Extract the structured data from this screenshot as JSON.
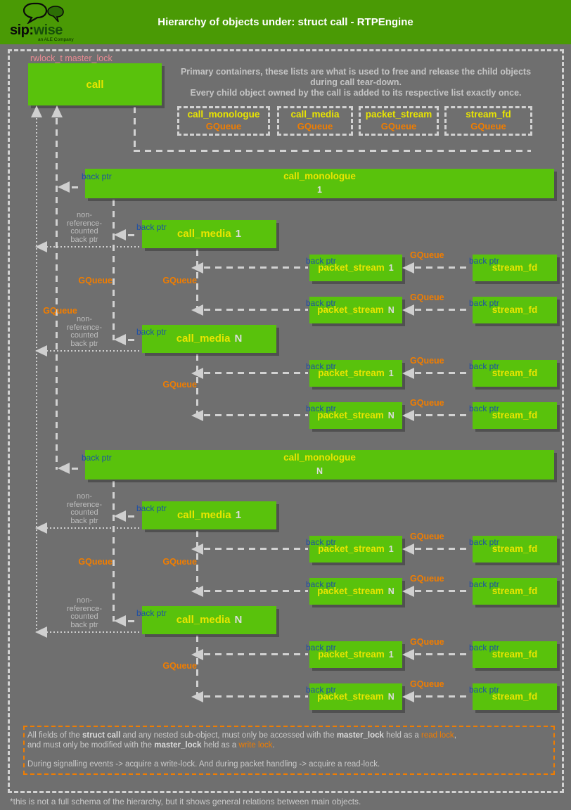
{
  "header": {
    "title": "Hierarchy of objects under: struct call - RTPEngine",
    "logo": {
      "sip": "sip:",
      "wise": "wise",
      "tagline": "an ALE Company"
    }
  },
  "diagram": {
    "rwlock_label": "rwlock_t master_lock",
    "primary_note": [
      "Primary containers, these lists are what is used to free and release the child objects",
      "during call tear-down.",
      "Every child object owned by the call is added to its respective list exactly once."
    ],
    "names": {
      "call": "call",
      "call_monologue": "call_monologue",
      "call_media": "call_media",
      "packet_stream": "packet_stream",
      "stream_fd": "stream_fd"
    },
    "subs": [
      "1",
      "N"
    ],
    "queue_boxes": [
      {
        "name": "call_monologue",
        "type": "GQueue"
      },
      {
        "name": "call_media",
        "type": "GQueue"
      },
      {
        "name": "packet_stream",
        "type": "GQueue"
      },
      {
        "name": "stream_fd",
        "type": "GQueue"
      }
    ],
    "labels": {
      "back_ptr": "back ptr",
      "gqueue": "GQueue",
      "non_ref": [
        "non-",
        "reference-",
        "counted",
        "back ptr"
      ]
    },
    "lock_note": {
      "lines": [
        [
          {
            "t": "All fields of the "
          },
          {
            "t": "struct call",
            "s": "b"
          },
          {
            "t": " and any nested sub-object, must only be accessed with the "
          },
          {
            "t": "master_lock",
            "s": "b"
          },
          {
            "t": " held as a "
          },
          {
            "t": "read lock",
            "s": "o"
          },
          {
            "t": ","
          }
        ],
        [
          {
            "t": "and must only be modified with the "
          },
          {
            "t": "master_lock",
            "s": "b"
          },
          {
            "t": " held as a "
          },
          {
            "t": "write lock",
            "s": "o"
          },
          {
            "t": "."
          }
        ],
        [],
        [
          {
            "t": "During signalling events -> acquire a write-lock. And during packet handling -> acquire a read-lock."
          }
        ]
      ]
    },
    "footnote": "*this is not a full schema of the hierarchy, but it shows general relations between main objects."
  },
  "colors": {
    "header_green": "#4a9a05",
    "box_green": "#59c20c",
    "label_yellow": "#e9e500",
    "gqueue_orange": "#f07d00",
    "back_ptr_blue": "#1c4fa6",
    "rwlock_pink": "#e98b92",
    "line_gray": "#d2d2d2",
    "background_gray": "#6f6f6f"
  }
}
